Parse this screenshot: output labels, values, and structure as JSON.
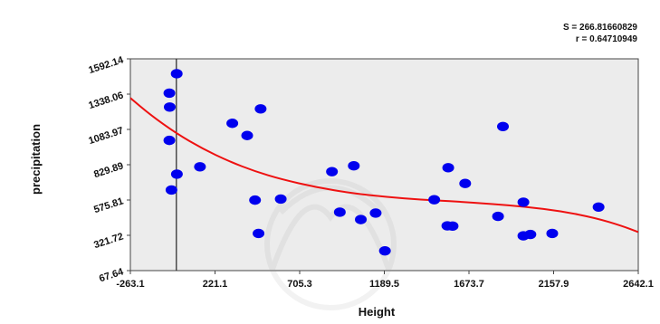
{
  "chart_data": {
    "type": "scatter",
    "xlabel": "Height",
    "ylabel": "precipitation",
    "xlim": [
      -263.1,
      2642.1
    ],
    "ylim": [
      67.64,
      1592.14
    ],
    "x_ticks": [
      "-263.1",
      "221.1",
      "705.3",
      "1189.5",
      "1673.7",
      "2157.9",
      "2642.1"
    ],
    "y_ticks": [
      "67.64",
      "321.72",
      "575.81",
      "829.89",
      "1083.97",
      "1338.06",
      "1592.14"
    ],
    "x_tick_values": [
      -263.1,
      221.1,
      705.3,
      1189.5,
      1673.7,
      2157.9,
      2642.1
    ],
    "y_tick_values": [
      67.64,
      321.72,
      575.81,
      829.89,
      1083.97,
      1338.06,
      1592.14
    ],
    "stats": {
      "s_label": "S = 266.81660829",
      "r_label": "r = 0.64710949"
    },
    "vertical_reference_x": 0,
    "colors": {
      "points": "#0000ee",
      "curve": "#ee1111",
      "plot_bg": "#ececec",
      "frame": "#444444"
    },
    "points": [
      {
        "x": 2,
        "y": 1485
      },
      {
        "x": -40,
        "y": 1345
      },
      {
        "x": -38,
        "y": 1245
      },
      {
        "x": -40,
        "y": 1005
      },
      {
        "x": 3,
        "y": 762
      },
      {
        "x": -28,
        "y": 648
      },
      {
        "x": 135,
        "y": 815
      },
      {
        "x": 320,
        "y": 1128
      },
      {
        "x": 405,
        "y": 1040
      },
      {
        "x": 482,
        "y": 1232
      },
      {
        "x": 450,
        "y": 575
      },
      {
        "x": 470,
        "y": 335
      },
      {
        "x": 597,
        "y": 583
      },
      {
        "x": 890,
        "y": 780
      },
      {
        "x": 1015,
        "y": 822
      },
      {
        "x": 935,
        "y": 488
      },
      {
        "x": 1055,
        "y": 435
      },
      {
        "x": 1140,
        "y": 482
      },
      {
        "x": 1193,
        "y": 210
      },
      {
        "x": 1475,
        "y": 578
      },
      {
        "x": 1555,
        "y": 808
      },
      {
        "x": 1550,
        "y": 390
      },
      {
        "x": 1580,
        "y": 388
      },
      {
        "x": 1652,
        "y": 695
      },
      {
        "x": 1840,
        "y": 458
      },
      {
        "x": 1868,
        "y": 1105
      },
      {
        "x": 1985,
        "y": 560
      },
      {
        "x": 1985,
        "y": 318
      },
      {
        "x": 2025,
        "y": 328
      },
      {
        "x": 2150,
        "y": 335
      },
      {
        "x": 2415,
        "y": 525
      }
    ],
    "fit_curve": [
      {
        "x": -263.1,
        "y": 1310
      },
      {
        "x": -150,
        "y": 1190
      },
      {
        "x": 0,
        "y": 1055
      },
      {
        "x": 150,
        "y": 945
      },
      {
        "x": 300,
        "y": 855
      },
      {
        "x": 450,
        "y": 782
      },
      {
        "x": 600,
        "y": 725
      },
      {
        "x": 800,
        "y": 668
      },
      {
        "x": 1000,
        "y": 625
      },
      {
        "x": 1200,
        "y": 598
      },
      {
        "x": 1400,
        "y": 578
      },
      {
        "x": 1600,
        "y": 565
      },
      {
        "x": 1800,
        "y": 548
      },
      {
        "x": 2000,
        "y": 527
      },
      {
        "x": 2200,
        "y": 496
      },
      {
        "x": 2400,
        "y": 446
      },
      {
        "x": 2550,
        "y": 389
      },
      {
        "x": 2642.1,
        "y": 345
      }
    ]
  }
}
